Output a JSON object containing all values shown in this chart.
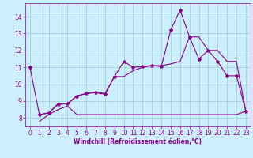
{
  "background_color": "#cceeff",
  "line_color": "#880088",
  "grid_color": "#99cccc",
  "xlabel": "Windchill (Refroidissement éolien,°C)",
  "xlabel_color": "#880088",
  "tick_color": "#880088",
  "xlim": [
    -0.5,
    23.5
  ],
  "ylim": [
    7.5,
    14.8
  ],
  "yticks": [
    8,
    9,
    10,
    11,
    12,
    13,
    14
  ],
  "xticks": [
    0,
    1,
    2,
    3,
    4,
    5,
    6,
    7,
    8,
    9,
    10,
    11,
    12,
    13,
    14,
    15,
    16,
    17,
    18,
    19,
    20,
    21,
    22,
    23
  ],
  "line1_x": [
    0,
    1,
    2,
    3,
    4,
    5,
    6,
    7,
    8,
    9,
    10,
    11,
    12,
    13,
    14,
    15,
    16,
    17,
    18,
    19,
    20,
    21,
    22,
    23
  ],
  "line1_y": [
    11.0,
    8.2,
    8.3,
    8.8,
    8.85,
    9.3,
    9.45,
    9.5,
    9.4,
    10.45,
    11.35,
    11.0,
    11.05,
    11.1,
    11.05,
    13.2,
    14.4,
    12.8,
    11.5,
    12.0,
    11.35,
    10.5,
    10.5,
    8.4
  ],
  "line2_x": [
    1,
    2,
    3,
    4,
    5,
    6,
    7,
    8,
    9,
    10,
    11,
    12,
    13,
    14,
    15,
    16,
    17,
    18,
    19,
    20,
    21,
    22,
    23
  ],
  "line2_y": [
    7.8,
    8.2,
    8.5,
    8.7,
    8.2,
    8.2,
    8.2,
    8.2,
    8.2,
    8.2,
    8.2,
    8.2,
    8.2,
    8.2,
    8.2,
    8.2,
    8.2,
    8.2,
    8.2,
    8.2,
    8.2,
    8.2,
    8.4
  ],
  "line3_x": [
    1,
    2,
    3,
    4,
    5,
    6,
    7,
    8,
    9,
    10,
    11,
    12,
    13,
    14,
    15,
    16,
    17,
    18,
    19,
    20,
    21,
    22,
    23
  ],
  "line3_y": [
    8.2,
    8.3,
    8.85,
    8.85,
    9.3,
    9.45,
    9.55,
    9.45,
    10.45,
    10.45,
    10.8,
    11.0,
    11.1,
    11.1,
    11.2,
    11.35,
    12.8,
    12.8,
    12.0,
    12.0,
    11.35,
    11.35,
    8.4
  ],
  "tick_fontsize": 5.5,
  "xlabel_fontsize": 5.5
}
